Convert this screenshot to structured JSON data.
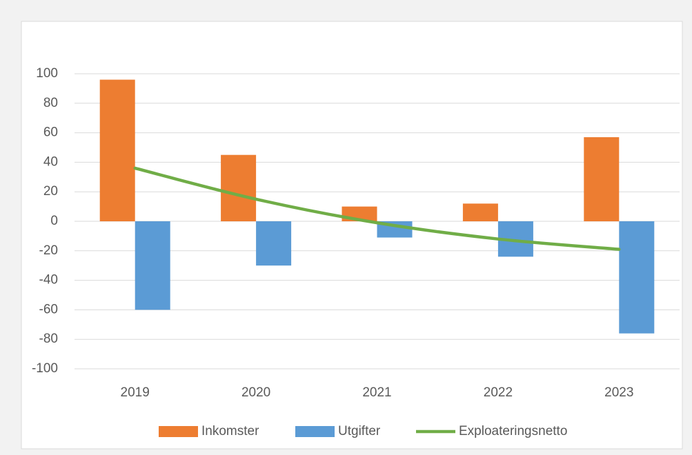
{
  "chart_data": {
    "type": "bar-line",
    "categories": [
      "2019",
      "2020",
      "2021",
      "2022",
      "2023"
    ],
    "series": [
      {
        "name": "Inkomster",
        "color": "#ed7d31",
        "values": [
          96,
          45,
          10,
          12,
          57
        ]
      },
      {
        "name": "Utgifter",
        "color": "#5b9bd5",
        "values": [
          -60,
          -30,
          -11,
          -24,
          -76
        ]
      },
      {
        "name": "Exploateringsnetto",
        "color": "#70ad47",
        "type": "line",
        "smooth": true,
        "values": [
          36,
          15,
          -1,
          -12,
          -19
        ]
      }
    ],
    "ylim": [
      -100,
      100
    ],
    "yticks": [
      -100,
      -80,
      -60,
      -40,
      -20,
      0,
      20,
      40,
      60,
      80,
      100
    ],
    "grid": true,
    "legend": "bottom"
  }
}
